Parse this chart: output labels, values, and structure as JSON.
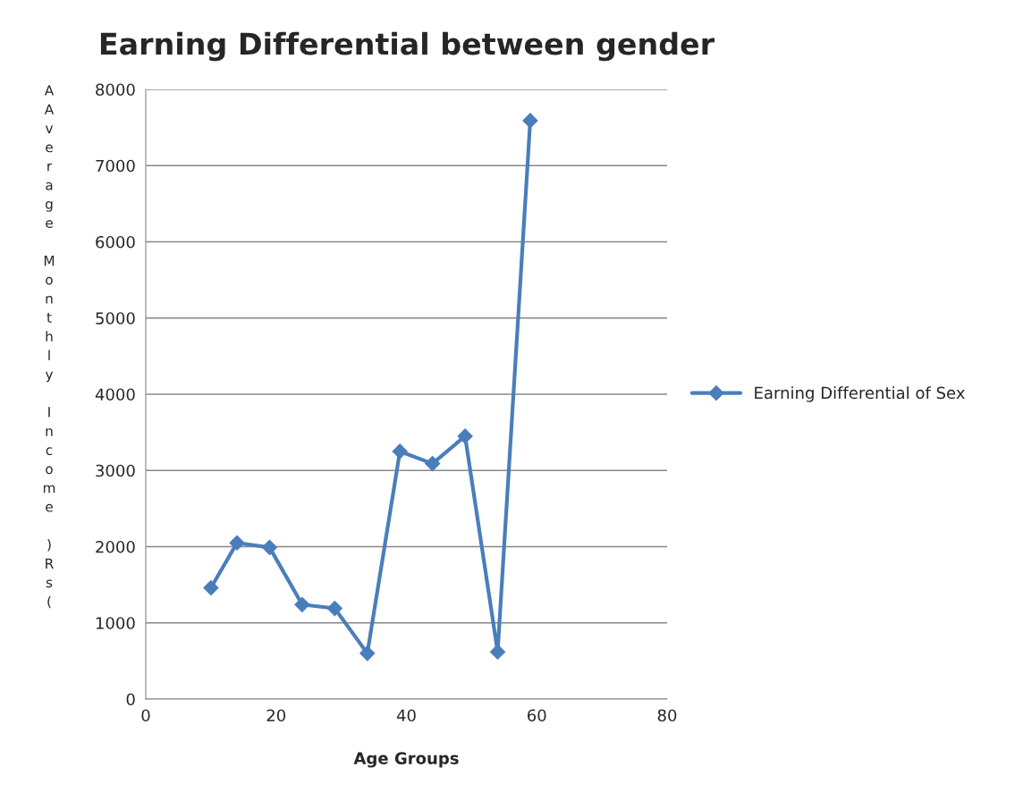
{
  "chart_data": {
    "type": "line",
    "title": "Earning Differential between gender",
    "xlabel": "Age Groups",
    "ylabel": "AAverage Monthly Income )Rs(",
    "series": [
      {
        "name": "Earning Differential of Sex",
        "color": "#4a7ebb",
        "x": [
          10,
          14,
          19,
          24,
          29,
          34,
          39,
          44,
          49,
          54,
          59
        ],
        "values": [
          1460,
          2050,
          1990,
          1240,
          1190,
          600,
          3250,
          3090,
          3450,
          620,
          7590
        ]
      }
    ],
    "xlim": [
      0,
      80
    ],
    "xticks": [
      0,
      20,
      40,
      60,
      80
    ],
    "ylim": [
      0,
      8000
    ],
    "yticks": [
      0,
      1000,
      2000,
      3000,
      4000,
      5000,
      6000,
      7000,
      8000
    ],
    "grid": "y",
    "legend": "right",
    "marker": "diamond",
    "line_style": "solid"
  }
}
